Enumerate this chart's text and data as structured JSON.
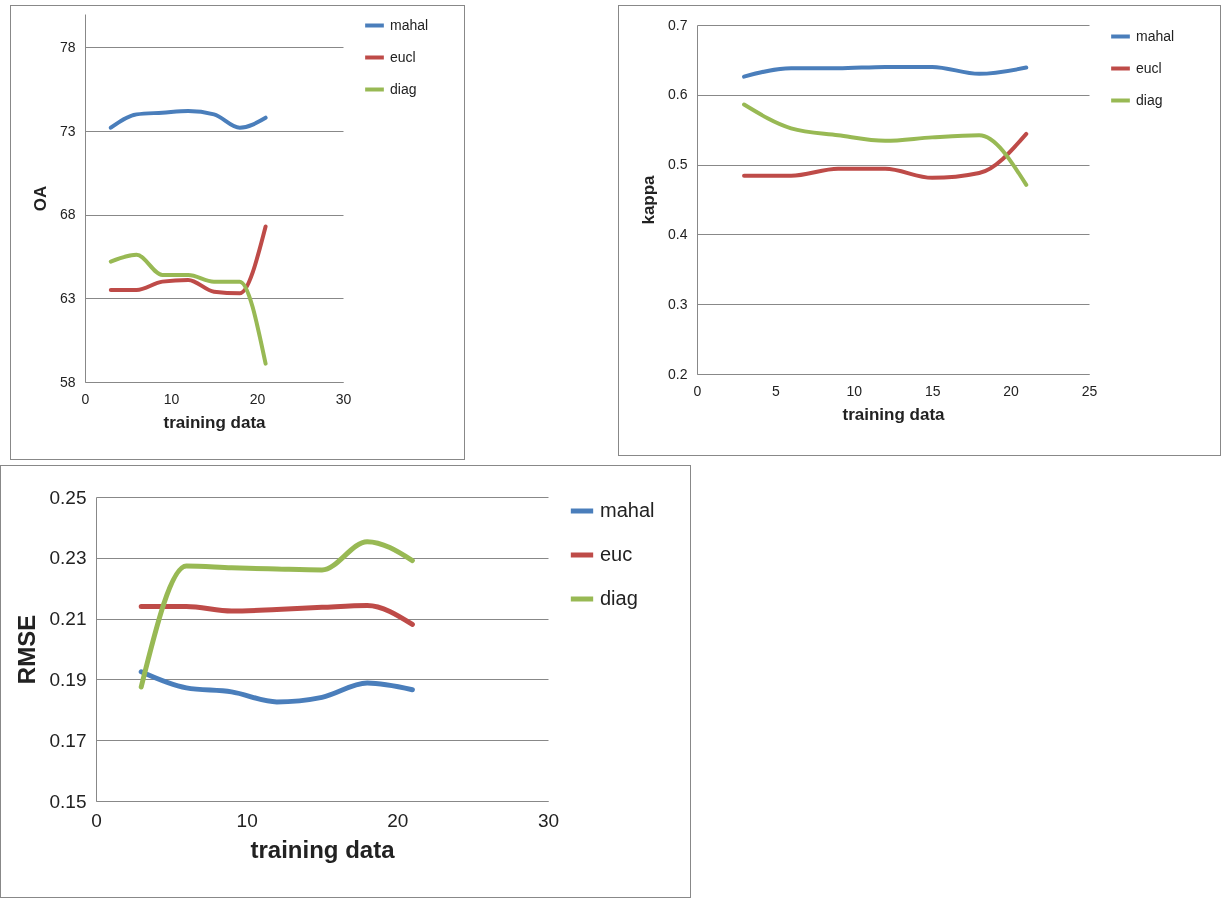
{
  "chart_data": [
    {
      "type": "line",
      "xlabel": "training data",
      "ylabel": "OA",
      "x": [
        3,
        6,
        9,
        12,
        15,
        18,
        21
      ],
      "xlim": [
        0,
        30
      ],
      "xticks": [
        0,
        10,
        20,
        30
      ],
      "ylim": [
        58,
        80
      ],
      "yticks": [
        58,
        63,
        68,
        73,
        78
      ],
      "grid": "y",
      "legend": "right",
      "series": [
        {
          "name": "mahal",
          "color": "#4a7ebb",
          "values": [
            73.2,
            74.0,
            74.1,
            74.2,
            74.0,
            73.2,
            73.8
          ]
        },
        {
          "name": "eucl",
          "color": "#be4b48",
          "values": [
            63.5,
            63.5,
            64.0,
            64.1,
            63.4,
            63.3,
            67.3
          ]
        },
        {
          "name": "diag",
          "color": "#98b954",
          "values": [
            65.2,
            65.6,
            64.4,
            64.4,
            64.0,
            64.0,
            59.1
          ]
        }
      ]
    },
    {
      "type": "line",
      "xlabel": "training data",
      "ylabel": "kappa",
      "x": [
        3,
        6,
        9,
        12,
        15,
        18,
        21
      ],
      "xlim": [
        0,
        25
      ],
      "xticks": [
        0,
        5,
        10,
        15,
        20,
        25
      ],
      "ylim": [
        0.2,
        0.7
      ],
      "yticks": [
        0.2,
        0.3,
        0.4,
        0.5,
        0.6,
        0.7
      ],
      "grid": "y",
      "legend": "right",
      "series": [
        {
          "name": "mahal",
          "color": "#4a7ebb",
          "values": [
            0.626,
            0.638,
            0.638,
            0.64,
            0.64,
            0.63,
            0.639
          ]
        },
        {
          "name": "eucl",
          "color": "#be4b48",
          "values": [
            0.484,
            0.484,
            0.494,
            0.494,
            0.481,
            0.488,
            0.544
          ]
        },
        {
          "name": "diag",
          "color": "#98b954",
          "values": [
            0.586,
            0.552,
            0.542,
            0.534,
            0.539,
            0.542,
            0.471
          ]
        }
      ]
    },
    {
      "type": "line",
      "xlabel": "training data",
      "ylabel": "RMSE",
      "x": [
        3,
        6,
        9,
        12,
        15,
        18,
        21
      ],
      "xlim": [
        0,
        30
      ],
      "xticks": [
        0,
        10,
        20,
        30
      ],
      "ylim": [
        0.15,
        0.25
      ],
      "yticks": [
        0.15,
        0.17,
        0.19,
        0.21,
        0.23,
        0.25
      ],
      "grid": "y",
      "legend": "right",
      "series": [
        {
          "name": "mahal",
          "color": "#4a7ebb",
          "values": [
            0.1925,
            0.1872,
            0.1859,
            0.1826,
            0.1841,
            0.1888,
            0.1866
          ]
        },
        {
          "name": "euc",
          "color": "#be4b48",
          "values": [
            0.214,
            0.214,
            0.2125,
            0.213,
            0.2137,
            0.2143,
            0.2081
          ]
        },
        {
          "name": "diag",
          "color": "#98b954",
          "values": [
            0.1875,
            0.2273,
            0.2267,
            0.2263,
            0.226,
            0.2353,
            0.2291
          ]
        }
      ]
    }
  ]
}
